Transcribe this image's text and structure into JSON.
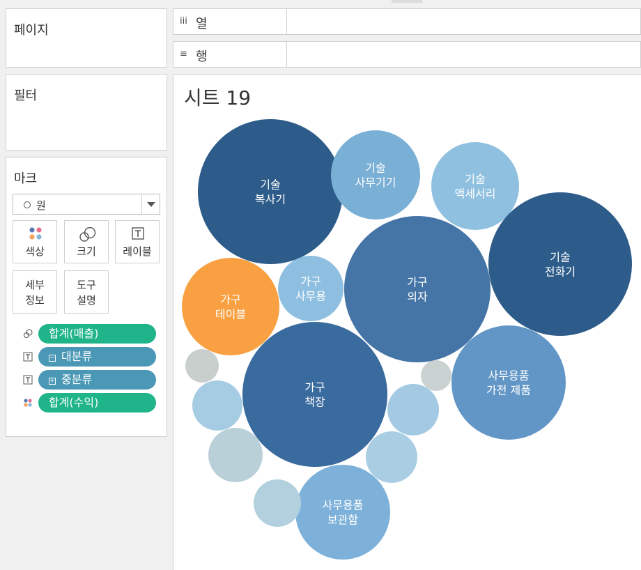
{
  "panels": {
    "pages": "페이지",
    "filters": "필터",
    "marks": "마크"
  },
  "shelves": {
    "columns": {
      "icon": "iii",
      "label": "열"
    },
    "rows": {
      "icon": "≡",
      "label": "행"
    }
  },
  "marks": {
    "mark_type": "원",
    "buttons": {
      "color": "색상",
      "size": "크기",
      "label": "레이블",
      "detail_1": "세부",
      "detail_2": "정보",
      "tooltip_1": "도구",
      "tooltip_2": "설명"
    },
    "pills": [
      {
        "icon": "size-icon",
        "text": "합계(매출)",
        "color": "#1fb48a"
      },
      {
        "icon": "label-icon",
        "prefix": "⊟",
        "text": "대분류",
        "color": "#4a97b6"
      },
      {
        "icon": "label-icon",
        "prefix": "⊞",
        "text": "중분류",
        "color": "#4a97b6"
      },
      {
        "icon": "color-icon",
        "text": "합계(수익)",
        "color": "#1fb48a"
      }
    ]
  },
  "sheet": {
    "title": "시트 19"
  },
  "chart_data": {
    "type": "packed-bubble",
    "bubbles": [
      {
        "label": [
          "기술",
          "복사기"
        ],
        "color": "#2e5c8a"
      },
      {
        "label": [
          "기술",
          "사무기기"
        ],
        "color": "#7aafd6"
      },
      {
        "label": [
          "기술",
          "액세서리"
        ],
        "color": "#8fc0e0"
      },
      {
        "label": [
          "기술",
          "전화기"
        ],
        "color": "#2e5c8a"
      },
      {
        "label": [
          "가구",
          "의자"
        ],
        "color": "#4575a6"
      },
      {
        "label": [
          "가구",
          "사무용"
        ],
        "color": "#8ebfe0"
      },
      {
        "label": [
          "가구",
          "테이블"
        ],
        "color": "#f9a142"
      },
      {
        "label": [
          "가구",
          "책장"
        ],
        "color": "#3a6b9e"
      },
      {
        "label": [
          "사무용품",
          "가전 제품"
        ],
        "color": "#6196c6"
      },
      {
        "label": [
          "사무용품",
          "보관함"
        ],
        "color": "#7db1da"
      },
      {
        "label": [],
        "color": "#c9cfcc"
      },
      {
        "label": [],
        "color": "#c9d2d0"
      },
      {
        "label": [],
        "color": "#a6cce3"
      },
      {
        "label": [],
        "color": "#a3cae2"
      },
      {
        "label": [],
        "color": "#b9d0d9"
      },
      {
        "label": [],
        "color": "#a9cde2"
      },
      {
        "label": [],
        "color": "#b2d0de"
      }
    ]
  }
}
